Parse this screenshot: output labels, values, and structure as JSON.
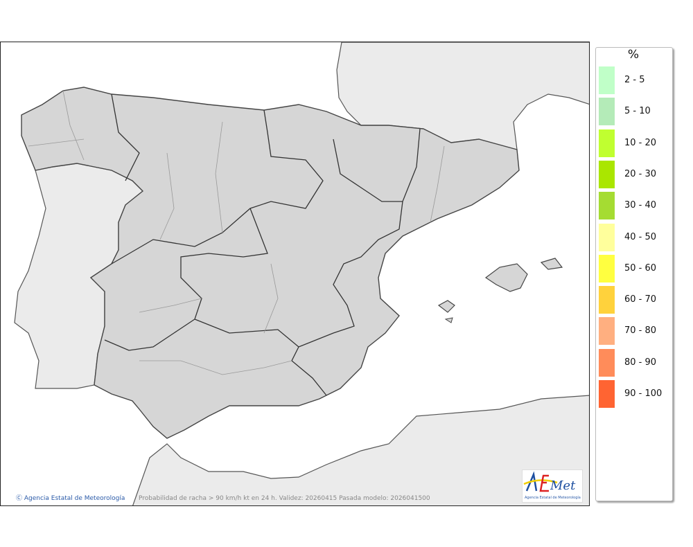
{
  "map": {
    "credit": "Agencia Estatal de Meteorología",
    "caption": "Probabilidad de racha > 90 km/h kt en 24 h. Validez: 20260415 Pasada modelo: 2026041500",
    "logo_text": "AEmet",
    "logo_subtext": "Agencia Estatal de Meteorología"
  },
  "legend": {
    "unit": "%",
    "items": [
      {
        "label": "2 - 5",
        "color": "#c0ffc8"
      },
      {
        "label": "5 - 10",
        "color": "#b4ebb8"
      },
      {
        "label": "10 - 20",
        "color": "#c0ff30"
      },
      {
        "label": "20 - 30",
        "color": "#aae600"
      },
      {
        "label": "30 - 40",
        "color": "#a5dc32"
      },
      {
        "label": "40 - 50",
        "color": "#ffff9c"
      },
      {
        "label": "50 - 60",
        "color": "#ffff40"
      },
      {
        "label": "60 - 70",
        "color": "#ffd23c"
      },
      {
        "label": "70 - 80",
        "color": "#ffaf80"
      },
      {
        "label": "80 - 90",
        "color": "#ff8c5a"
      },
      {
        "label": "90 - 100",
        "color": "#ff6432"
      }
    ]
  }
}
